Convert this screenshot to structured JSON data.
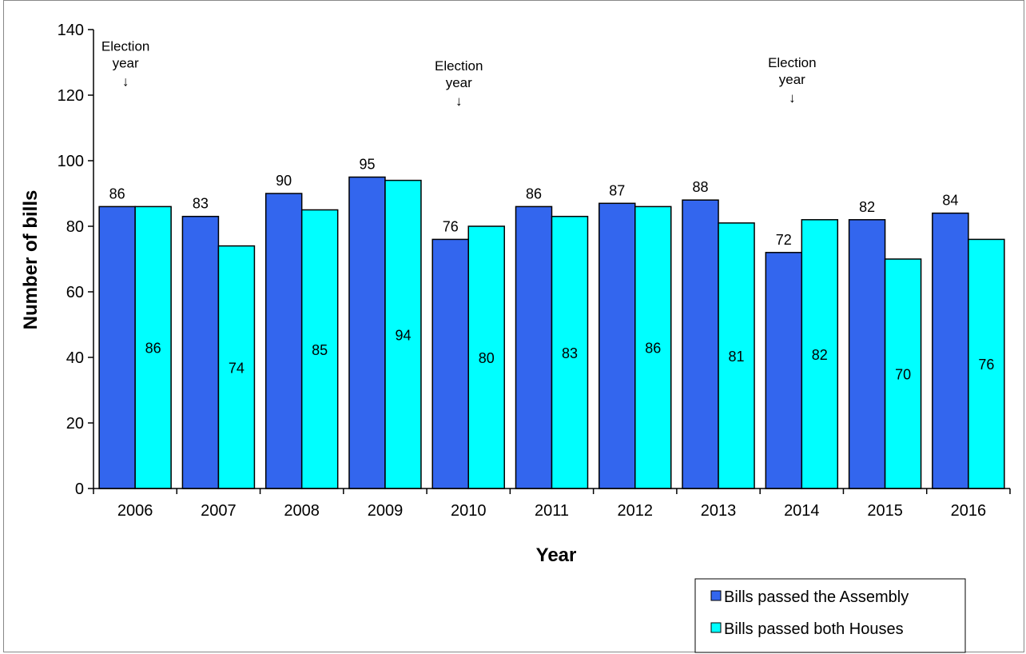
{
  "chart_data": {
    "type": "bar",
    "title": "",
    "xlabel": "Year",
    "ylabel": "Number of bills",
    "ylim": [
      0,
      140
    ],
    "yticks": [
      0,
      20,
      40,
      60,
      80,
      100,
      120,
      140
    ],
    "grid": false,
    "categories": [
      "2006",
      "2007",
      "2008",
      "2009",
      "2010",
      "2011",
      "2012",
      "2013",
      "2014",
      "2015",
      "2016"
    ],
    "series": [
      {
        "name": "Bills passed the Assembly",
        "color": "#3366ee",
        "label_position": "above",
        "values": [
          86,
          83,
          90,
          95,
          76,
          86,
          87,
          88,
          72,
          82,
          84
        ]
      },
      {
        "name": "Bills passed both Houses",
        "color": "#00ffff",
        "label_position": "inside-middle",
        "values": [
          86,
          74,
          85,
          94,
          80,
          83,
          86,
          81,
          82,
          70,
          76
        ]
      }
    ],
    "annotations": [
      {
        "category": "2006",
        "line1": "Election",
        "line2": "year",
        "arrow": "↓",
        "y_top": 136
      },
      {
        "category": "2010",
        "line1": "Election",
        "line2": "year",
        "arrow": "↓",
        "y_top": 130
      },
      {
        "category": "2014",
        "line1": "Election",
        "line2": "year",
        "arrow": "↓",
        "y_top": 131
      }
    ],
    "legend_position": "bottom-right"
  }
}
